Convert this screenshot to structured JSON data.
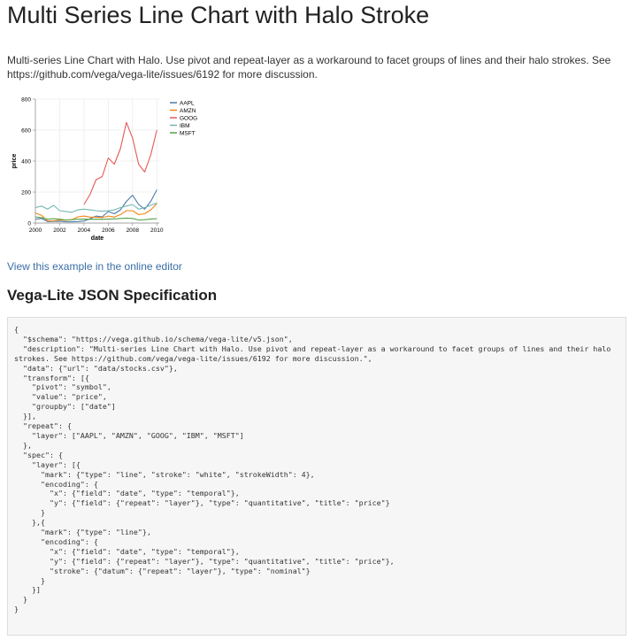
{
  "page": {
    "title": "Multi Series Line Chart with Halo Stroke",
    "description": "Multi-series Line Chart with Halo. Use pivot and repeat-layer as a workaround to facet groups of lines and their halo strokes. See https://github.com/vega/vega-lite/issues/6192 for more discussion.",
    "editor_link": "View this example in the online editor",
    "spec_heading": "Vega-Lite JSON Specification"
  },
  "chart_data": {
    "type": "line",
    "xlabel": "date",
    "ylabel": "price",
    "x_ticks": [
      "2000",
      "2002",
      "2004",
      "2006",
      "2008",
      "2010"
    ],
    "y_ticks": [
      "0",
      "200",
      "400",
      "600",
      "800"
    ],
    "xlim": [
      2000,
      2010.2
    ],
    "ylim": [
      0,
      800
    ],
    "legend_position": "right",
    "x": [
      2000.0,
      2000.5,
      2001.0,
      2001.5,
      2002.0,
      2002.5,
      2003.0,
      2003.5,
      2004.0,
      2004.5,
      2005.0,
      2005.5,
      2006.0,
      2006.5,
      2007.0,
      2007.5,
      2008.0,
      2008.5,
      2009.0,
      2009.5,
      2010.0
    ],
    "series": [
      {
        "name": "AAPL",
        "color": "#4c78a8",
        "values": [
          25,
          30,
          10,
          11,
          12,
          8,
          8,
          10,
          13,
          28,
          45,
          40,
          75,
          60,
          85,
          140,
          180,
          120,
          90,
          140,
          215
        ]
      },
      {
        "name": "AMZN",
        "color": "#f58518",
        "values": [
          65,
          50,
          15,
          14,
          20,
          18,
          22,
          40,
          45,
          38,
          38,
          35,
          45,
          38,
          55,
          80,
          80,
          55,
          60,
          85,
          125
        ]
      },
      {
        "name": "GOOG",
        "color": "#e45756",
        "values": [
          null,
          null,
          null,
          null,
          null,
          null,
          null,
          null,
          120,
          185,
          280,
          300,
          420,
          380,
          480,
          650,
          550,
          380,
          330,
          440,
          600
        ]
      },
      {
        "name": "IBM",
        "color": "#72b7b2",
        "values": [
          100,
          110,
          90,
          115,
          80,
          75,
          70,
          85,
          90,
          85,
          80,
          76,
          80,
          85,
          100,
          110,
          120,
          90,
          100,
          115,
          130
        ]
      },
      {
        "name": "MSFT",
        "color": "#54a24b",
        "values": [
          40,
          35,
          25,
          28,
          25,
          20,
          22,
          25,
          26,
          24,
          25,
          24,
          26,
          27,
          30,
          32,
          30,
          20,
          22,
          26,
          28
        ]
      }
    ]
  },
  "code": {
    "lines": [
      "{",
      "  \"$schema\": \"https://vega.github.io/schema/vega-lite/v5.json\",",
      "  \"description\": \"Multi-series Line Chart with Halo. Use pivot and repeat-layer as a workaround to facet groups of lines and their halo",
      "strokes. See https://github.com/vega/vega-lite/issues/6192 for more discussion.\",",
      "  \"data\": {\"url\": \"data/stocks.csv\"},",
      "  \"transform\": [{",
      "    \"pivot\": \"symbol\",",
      "    \"value\": \"price\",",
      "    \"groupby\": [\"date\"]",
      "  }],",
      "  \"repeat\": {",
      "    \"layer\": [\"AAPL\", \"AMZN\", \"GOOG\", \"IBM\", \"MSFT\"]",
      "  },",
      "  \"spec\": {",
      "    \"layer\": [{",
      "      \"mark\": {\"type\": \"line\", \"stroke\": \"white\", \"strokeWidth\": 4},",
      "      \"encoding\": {",
      "        \"x\": {\"field\": \"date\", \"type\": \"temporal\"},",
      "        \"y\": {\"field\": {\"repeat\": \"layer\"}, \"type\": \"quantitative\", \"title\": \"price\"}",
      "      }",
      "    },{",
      "      \"mark\": {\"type\": \"line\"},",
      "      \"encoding\": {",
      "        \"x\": {\"field\": \"date\", \"type\": \"temporal\"},",
      "        \"y\": {\"field\": {\"repeat\": \"layer\"}, \"type\": \"quantitative\", \"title\": \"price\"},",
      "        \"stroke\": {\"datum\": {\"repeat\": \"layer\"}, \"type\": \"nominal\"}",
      "      }",
      "    }]",
      "  }",
      "}"
    ]
  }
}
